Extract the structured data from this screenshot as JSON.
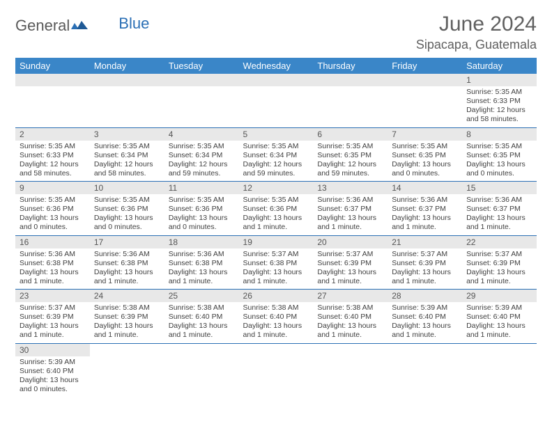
{
  "logo": {
    "general": "General",
    "blue": "Blue"
  },
  "title": "June 2024",
  "location": "Sipacapa, Guatemala",
  "colors": {
    "header_bg": "#3a86c8",
    "header_text": "#ffffff",
    "border": "#2a6fb5",
    "daynum_bg": "#e8e8e8",
    "text": "#404040",
    "title_text": "#606060"
  },
  "weekdays": [
    "Sunday",
    "Monday",
    "Tuesday",
    "Wednesday",
    "Thursday",
    "Friday",
    "Saturday"
  ],
  "weeks": [
    [
      null,
      null,
      null,
      null,
      null,
      null,
      {
        "d": "1",
        "sr": "Sunrise: 5:35 AM",
        "ss": "Sunset: 6:33 PM",
        "dl": "Daylight: 12 hours and 58 minutes."
      }
    ],
    [
      {
        "d": "2",
        "sr": "Sunrise: 5:35 AM",
        "ss": "Sunset: 6:33 PM",
        "dl": "Daylight: 12 hours and 58 minutes."
      },
      {
        "d": "3",
        "sr": "Sunrise: 5:35 AM",
        "ss": "Sunset: 6:34 PM",
        "dl": "Daylight: 12 hours and 58 minutes."
      },
      {
        "d": "4",
        "sr": "Sunrise: 5:35 AM",
        "ss": "Sunset: 6:34 PM",
        "dl": "Daylight: 12 hours and 59 minutes."
      },
      {
        "d": "5",
        "sr": "Sunrise: 5:35 AM",
        "ss": "Sunset: 6:34 PM",
        "dl": "Daylight: 12 hours and 59 minutes."
      },
      {
        "d": "6",
        "sr": "Sunrise: 5:35 AM",
        "ss": "Sunset: 6:35 PM",
        "dl": "Daylight: 12 hours and 59 minutes."
      },
      {
        "d": "7",
        "sr": "Sunrise: 5:35 AM",
        "ss": "Sunset: 6:35 PM",
        "dl": "Daylight: 13 hours and 0 minutes."
      },
      {
        "d": "8",
        "sr": "Sunrise: 5:35 AM",
        "ss": "Sunset: 6:35 PM",
        "dl": "Daylight: 13 hours and 0 minutes."
      }
    ],
    [
      {
        "d": "9",
        "sr": "Sunrise: 5:35 AM",
        "ss": "Sunset: 6:36 PM",
        "dl": "Daylight: 13 hours and 0 minutes."
      },
      {
        "d": "10",
        "sr": "Sunrise: 5:35 AM",
        "ss": "Sunset: 6:36 PM",
        "dl": "Daylight: 13 hours and 0 minutes."
      },
      {
        "d": "11",
        "sr": "Sunrise: 5:35 AM",
        "ss": "Sunset: 6:36 PM",
        "dl": "Daylight: 13 hours and 0 minutes."
      },
      {
        "d": "12",
        "sr": "Sunrise: 5:35 AM",
        "ss": "Sunset: 6:36 PM",
        "dl": "Daylight: 13 hours and 1 minute."
      },
      {
        "d": "13",
        "sr": "Sunrise: 5:36 AM",
        "ss": "Sunset: 6:37 PM",
        "dl": "Daylight: 13 hours and 1 minute."
      },
      {
        "d": "14",
        "sr": "Sunrise: 5:36 AM",
        "ss": "Sunset: 6:37 PM",
        "dl": "Daylight: 13 hours and 1 minute."
      },
      {
        "d": "15",
        "sr": "Sunrise: 5:36 AM",
        "ss": "Sunset: 6:37 PM",
        "dl": "Daylight: 13 hours and 1 minute."
      }
    ],
    [
      {
        "d": "16",
        "sr": "Sunrise: 5:36 AM",
        "ss": "Sunset: 6:38 PM",
        "dl": "Daylight: 13 hours and 1 minute."
      },
      {
        "d": "17",
        "sr": "Sunrise: 5:36 AM",
        "ss": "Sunset: 6:38 PM",
        "dl": "Daylight: 13 hours and 1 minute."
      },
      {
        "d": "18",
        "sr": "Sunrise: 5:36 AM",
        "ss": "Sunset: 6:38 PM",
        "dl": "Daylight: 13 hours and 1 minute."
      },
      {
        "d": "19",
        "sr": "Sunrise: 5:37 AM",
        "ss": "Sunset: 6:38 PM",
        "dl": "Daylight: 13 hours and 1 minute."
      },
      {
        "d": "20",
        "sr": "Sunrise: 5:37 AM",
        "ss": "Sunset: 6:39 PM",
        "dl": "Daylight: 13 hours and 1 minute."
      },
      {
        "d": "21",
        "sr": "Sunrise: 5:37 AM",
        "ss": "Sunset: 6:39 PM",
        "dl": "Daylight: 13 hours and 1 minute."
      },
      {
        "d": "22",
        "sr": "Sunrise: 5:37 AM",
        "ss": "Sunset: 6:39 PM",
        "dl": "Daylight: 13 hours and 1 minute."
      }
    ],
    [
      {
        "d": "23",
        "sr": "Sunrise: 5:37 AM",
        "ss": "Sunset: 6:39 PM",
        "dl": "Daylight: 13 hours and 1 minute."
      },
      {
        "d": "24",
        "sr": "Sunrise: 5:38 AM",
        "ss": "Sunset: 6:39 PM",
        "dl": "Daylight: 13 hours and 1 minute."
      },
      {
        "d": "25",
        "sr": "Sunrise: 5:38 AM",
        "ss": "Sunset: 6:40 PM",
        "dl": "Daylight: 13 hours and 1 minute."
      },
      {
        "d": "26",
        "sr": "Sunrise: 5:38 AM",
        "ss": "Sunset: 6:40 PM",
        "dl": "Daylight: 13 hours and 1 minute."
      },
      {
        "d": "27",
        "sr": "Sunrise: 5:38 AM",
        "ss": "Sunset: 6:40 PM",
        "dl": "Daylight: 13 hours and 1 minute."
      },
      {
        "d": "28",
        "sr": "Sunrise: 5:39 AM",
        "ss": "Sunset: 6:40 PM",
        "dl": "Daylight: 13 hours and 1 minute."
      },
      {
        "d": "29",
        "sr": "Sunrise: 5:39 AM",
        "ss": "Sunset: 6:40 PM",
        "dl": "Daylight: 13 hours and 1 minute."
      }
    ],
    [
      {
        "d": "30",
        "sr": "Sunrise: 5:39 AM",
        "ss": "Sunset: 6:40 PM",
        "dl": "Daylight: 13 hours and 0 minutes."
      },
      null,
      null,
      null,
      null,
      null,
      null
    ]
  ]
}
